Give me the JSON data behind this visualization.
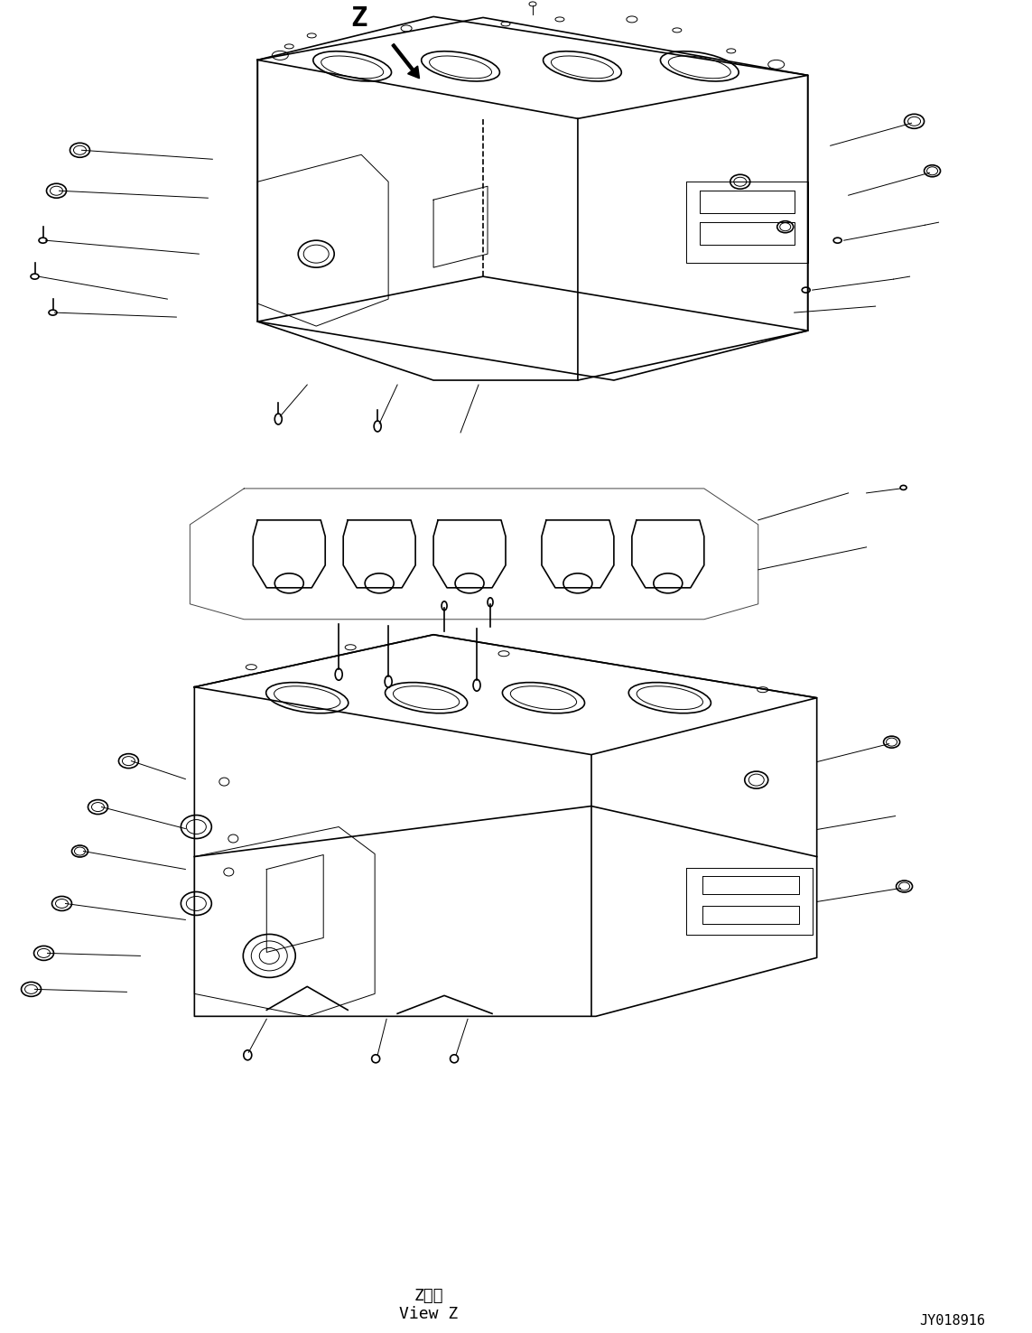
{
  "background_color": "#ffffff",
  "line_color": "#000000",
  "label_z_line1": "Z　視",
  "label_z_line2": "View Z",
  "part_number": "JY018916",
  "z_label": "Z",
  "figsize": [
    11.43,
    14.76
  ],
  "dpi": 100
}
